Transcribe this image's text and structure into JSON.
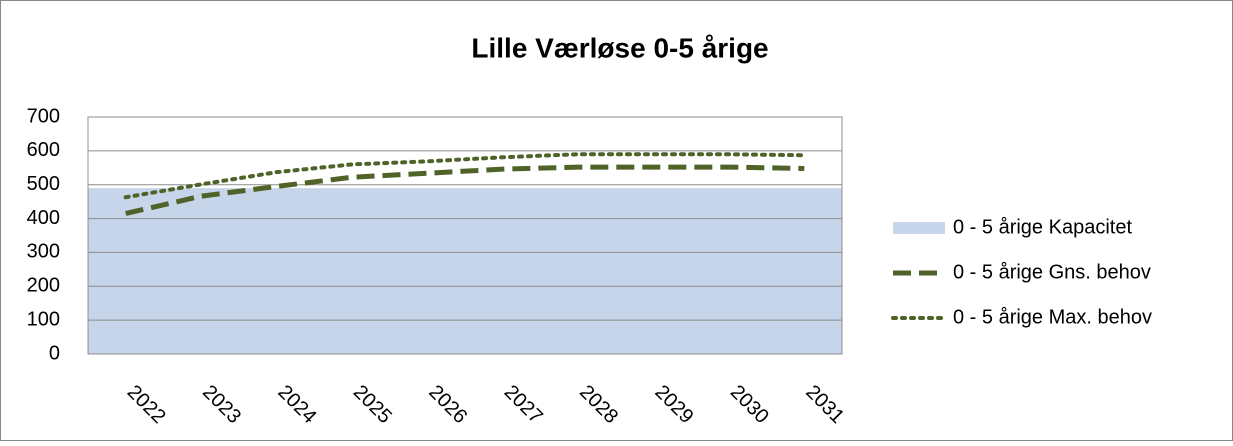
{
  "chart_data": {
    "type": "area-line",
    "title": "Lille Værløse 0-5 årige",
    "categories": [
      "2022",
      "2023",
      "2024",
      "2025",
      "2026",
      "2027",
      "2028",
      "2029",
      "2030",
      "2031"
    ],
    "series": [
      {
        "name": "0 - 5 årige Kapacitet",
        "kind": "area",
        "color": "#c6d5e9",
        "values": [
          490,
          490,
          490,
          490,
          490,
          490,
          490,
          490,
          490,
          490
        ]
      },
      {
        "name": "0 - 5 årige Gns. behov",
        "kind": "dashed",
        "color": "#4f6228",
        "values": [
          415,
          466,
          495,
          522,
          534,
          546,
          552,
          552,
          552,
          548
        ]
      },
      {
        "name": "0 - 5 årige Max. behov",
        "kind": "dotted",
        "color": "#4f6228",
        "values": [
          463,
          501,
          537,
          560,
          569,
          581,
          590,
          590,
          590,
          587
        ]
      }
    ],
    "ylim": [
      0,
      700
    ],
    "yticks": [
      0,
      100,
      200,
      300,
      400,
      500,
      600,
      700
    ],
    "grid": true,
    "legend": "right"
  }
}
